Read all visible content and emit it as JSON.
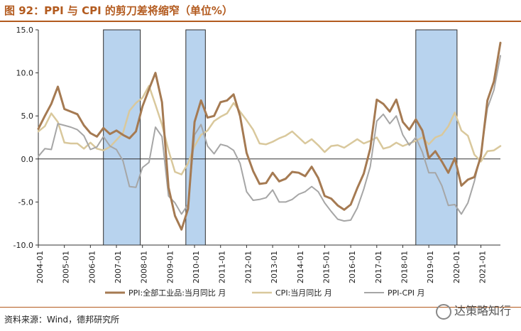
{
  "header": {
    "title": "图 92：PPI 与 CPI 的剪刀差将缩窄（单位%）"
  },
  "footer": {
    "source": "资料来源：Wind，德邦研究所",
    "brand": "达策略知行",
    "brand_icon": "wechat-icon"
  },
  "chart_data": {
    "type": "line",
    "title": "图 92：PPI 与 CPI 的剪刀差将缩窄（单位%）",
    "xlabel": "",
    "ylabel": "",
    "ylim": [
      -10,
      15
    ],
    "xlim": [
      "2004-01",
      "2021-10"
    ],
    "y_ticks": [
      "15.0",
      "10.0",
      "5.0",
      "0.0",
      "-5.0",
      "-10.0"
    ],
    "x_ticks": [
      "2004-01",
      "2005-01",
      "2006-01",
      "2007-01",
      "2008-01",
      "2009-01",
      "2010-01",
      "2011-01",
      "2012-01",
      "2013-01",
      "2014-01",
      "2015-01",
      "2016-01",
      "2017-01",
      "2018-01",
      "2019-01",
      "2020-01",
      "2021-01"
    ],
    "legend_position": "bottom",
    "grid": false,
    "shaded_periods": [
      {
        "start": "2006-07",
        "end": "2007-12"
      },
      {
        "start": "2009-09",
        "end": "2010-06"
      },
      {
        "start": "2018-07",
        "end": "2020-02"
      }
    ],
    "series": [
      {
        "name": "PPI:全部工业品:当月同比 月",
        "color": "#a57a52",
        "points": [
          [
            "2004-01",
            3.5
          ],
          [
            "2004-04",
            5.0
          ],
          [
            "2004-07",
            6.4
          ],
          [
            "2004-10",
            8.4
          ],
          [
            "2005-01",
            5.8
          ],
          [
            "2005-04",
            5.5
          ],
          [
            "2005-07",
            5.2
          ],
          [
            "2005-10",
            3.9
          ],
          [
            "2006-01",
            3.0
          ],
          [
            "2006-04",
            2.6
          ],
          [
            "2006-07",
            3.6
          ],
          [
            "2006-10",
            2.9
          ],
          [
            "2007-01",
            3.3
          ],
          [
            "2007-04",
            2.8
          ],
          [
            "2007-07",
            2.4
          ],
          [
            "2007-10",
            3.2
          ],
          [
            "2008-01",
            6.1
          ],
          [
            "2008-04",
            8.1
          ],
          [
            "2008-07",
            10.0
          ],
          [
            "2008-10",
            6.6
          ],
          [
            "2009-01",
            -3.3
          ],
          [
            "2009-04",
            -6.6
          ],
          [
            "2009-07",
            -8.2
          ],
          [
            "2009-10",
            -5.8
          ],
          [
            "2010-01",
            4.3
          ],
          [
            "2010-04",
            6.8
          ],
          [
            "2010-07",
            4.8
          ],
          [
            "2010-10",
            5.0
          ],
          [
            "2011-01",
            6.6
          ],
          [
            "2011-04",
            6.8
          ],
          [
            "2011-07",
            7.5
          ],
          [
            "2011-10",
            5.0
          ],
          [
            "2012-01",
            0.7
          ],
          [
            "2012-04",
            -1.4
          ],
          [
            "2012-07",
            -2.9
          ],
          [
            "2012-10",
            -2.8
          ],
          [
            "2013-01",
            -1.6
          ],
          [
            "2013-04",
            -2.6
          ],
          [
            "2013-07",
            -2.3
          ],
          [
            "2013-10",
            -1.5
          ],
          [
            "2014-01",
            -1.6
          ],
          [
            "2014-04",
            -2.0
          ],
          [
            "2014-07",
            -0.9
          ],
          [
            "2014-10",
            -2.2
          ],
          [
            "2015-01",
            -4.3
          ],
          [
            "2015-04",
            -4.6
          ],
          [
            "2015-07",
            -5.4
          ],
          [
            "2015-10",
            -5.9
          ],
          [
            "2016-01",
            -5.3
          ],
          [
            "2016-04",
            -3.4
          ],
          [
            "2016-07",
            -1.7
          ],
          [
            "2016-10",
            1.2
          ],
          [
            "2017-01",
            6.9
          ],
          [
            "2017-04",
            6.4
          ],
          [
            "2017-07",
            5.5
          ],
          [
            "2017-10",
            6.9
          ],
          [
            "2018-01",
            4.3
          ],
          [
            "2018-04",
            3.4
          ],
          [
            "2018-07",
            4.6
          ],
          [
            "2018-10",
            3.3
          ],
          [
            "2019-01",
            0.1
          ],
          [
            "2019-04",
            0.9
          ],
          [
            "2019-07",
            -0.3
          ],
          [
            "2019-10",
            -1.6
          ],
          [
            "2020-01",
            0.1
          ],
          [
            "2020-04",
            -3.1
          ],
          [
            "2020-07",
            -2.4
          ],
          [
            "2020-10",
            -2.1
          ],
          [
            "2021-01",
            0.3
          ],
          [
            "2021-04",
            6.8
          ],
          [
            "2021-07",
            9.0
          ],
          [
            "2021-10",
            13.5
          ]
        ]
      },
      {
        "name": "CPI:当月同比 月",
        "color": "#d9c89c",
        "points": [
          [
            "2004-01",
            3.2
          ],
          [
            "2004-04",
            3.8
          ],
          [
            "2004-07",
            5.3
          ],
          [
            "2004-10",
            4.3
          ],
          [
            "2005-01",
            1.9
          ],
          [
            "2005-04",
            1.8
          ],
          [
            "2005-07",
            1.8
          ],
          [
            "2005-10",
            1.2
          ],
          [
            "2006-01",
            1.9
          ],
          [
            "2006-04",
            1.2
          ],
          [
            "2006-07",
            1.0
          ],
          [
            "2006-10",
            1.4
          ],
          [
            "2007-01",
            2.2
          ],
          [
            "2007-04",
            3.0
          ],
          [
            "2007-07",
            5.6
          ],
          [
            "2007-10",
            6.5
          ],
          [
            "2008-01",
            7.1
          ],
          [
            "2008-04",
            8.5
          ],
          [
            "2008-07",
            6.3
          ],
          [
            "2008-10",
            4.0
          ],
          [
            "2009-01",
            1.0
          ],
          [
            "2009-04",
            -1.5
          ],
          [
            "2009-07",
            -1.8
          ],
          [
            "2009-10",
            -0.5
          ],
          [
            "2010-01",
            1.5
          ],
          [
            "2010-04",
            2.8
          ],
          [
            "2010-07",
            3.3
          ],
          [
            "2010-10",
            4.4
          ],
          [
            "2011-01",
            4.9
          ],
          [
            "2011-04",
            5.3
          ],
          [
            "2011-07",
            6.5
          ],
          [
            "2011-10",
            5.5
          ],
          [
            "2012-01",
            4.5
          ],
          [
            "2012-04",
            3.4
          ],
          [
            "2012-07",
            1.8
          ],
          [
            "2012-10",
            1.7
          ],
          [
            "2013-01",
            2.0
          ],
          [
            "2013-04",
            2.4
          ],
          [
            "2013-07",
            2.7
          ],
          [
            "2013-10",
            3.2
          ],
          [
            "2014-01",
            2.5
          ],
          [
            "2014-04",
            1.8
          ],
          [
            "2014-07",
            2.3
          ],
          [
            "2014-10",
            1.6
          ],
          [
            "2015-01",
            0.8
          ],
          [
            "2015-04",
            1.5
          ],
          [
            "2015-07",
            1.6
          ],
          [
            "2015-10",
            1.3
          ],
          [
            "2016-01",
            1.8
          ],
          [
            "2016-04",
            2.3
          ],
          [
            "2016-07",
            1.8
          ],
          [
            "2016-10",
            2.1
          ],
          [
            "2017-01",
            2.5
          ],
          [
            "2017-04",
            1.2
          ],
          [
            "2017-07",
            1.4
          ],
          [
            "2017-10",
            1.9
          ],
          [
            "2018-01",
            1.5
          ],
          [
            "2018-04",
            1.8
          ],
          [
            "2018-07",
            2.1
          ],
          [
            "2018-10",
            2.5
          ],
          [
            "2019-01",
            1.7
          ],
          [
            "2019-04",
            2.5
          ],
          [
            "2019-07",
            2.8
          ],
          [
            "2019-10",
            3.8
          ],
          [
            "2020-01",
            5.4
          ],
          [
            "2020-04",
            3.3
          ],
          [
            "2020-07",
            2.7
          ],
          [
            "2020-10",
            0.5
          ],
          [
            "2021-01",
            -0.3
          ],
          [
            "2021-04",
            0.9
          ],
          [
            "2021-07",
            1.0
          ],
          [
            "2021-10",
            1.5
          ]
        ]
      },
      {
        "name": "PPI-CPI 月",
        "color": "#a6a6a6",
        "points": [
          [
            "2004-01",
            0.3
          ],
          [
            "2004-04",
            1.2
          ],
          [
            "2004-07",
            1.1
          ],
          [
            "2004-10",
            4.1
          ],
          [
            "2005-01",
            3.9
          ],
          [
            "2005-04",
            3.7
          ],
          [
            "2005-07",
            3.4
          ],
          [
            "2005-10",
            2.7
          ],
          [
            "2006-01",
            1.1
          ],
          [
            "2006-04",
            1.4
          ],
          [
            "2006-07",
            2.6
          ],
          [
            "2006-10",
            1.5
          ],
          [
            "2007-01",
            1.1
          ],
          [
            "2007-04",
            -0.2
          ],
          [
            "2007-07",
            -3.2
          ],
          [
            "2007-10",
            -3.3
          ],
          [
            "2008-01",
            -1.0
          ],
          [
            "2008-04",
            -0.4
          ],
          [
            "2008-07",
            3.7
          ],
          [
            "2008-10",
            2.6
          ],
          [
            "2009-01",
            -4.3
          ],
          [
            "2009-04",
            -5.1
          ],
          [
            "2009-07",
            -6.4
          ],
          [
            "2009-10",
            -5.3
          ],
          [
            "2010-01",
            2.8
          ],
          [
            "2010-04",
            4.0
          ],
          [
            "2010-07",
            1.5
          ],
          [
            "2010-10",
            0.6
          ],
          [
            "2011-01",
            1.7
          ],
          [
            "2011-04",
            1.5
          ],
          [
            "2011-07",
            1.0
          ],
          [
            "2011-10",
            -0.5
          ],
          [
            "2012-01",
            -3.8
          ],
          [
            "2012-04",
            -4.8
          ],
          [
            "2012-07",
            -4.7
          ],
          [
            "2012-10",
            -4.5
          ],
          [
            "2013-01",
            -3.6
          ],
          [
            "2013-04",
            -5.0
          ],
          [
            "2013-07",
            -5.0
          ],
          [
            "2013-10",
            -4.7
          ],
          [
            "2014-01",
            -4.1
          ],
          [
            "2014-04",
            -3.8
          ],
          [
            "2014-07",
            -3.2
          ],
          [
            "2014-10",
            -3.8
          ],
          [
            "2015-01",
            -5.1
          ],
          [
            "2015-04",
            -6.1
          ],
          [
            "2015-07",
            -7.0
          ],
          [
            "2015-10",
            -7.2
          ],
          [
            "2016-01",
            -7.1
          ],
          [
            "2016-04",
            -5.7
          ],
          [
            "2016-07",
            -3.5
          ],
          [
            "2016-10",
            -0.9
          ],
          [
            "2017-01",
            4.4
          ],
          [
            "2017-04",
            5.2
          ],
          [
            "2017-07",
            4.1
          ],
          [
            "2017-10",
            5.0
          ],
          [
            "2018-01",
            2.8
          ],
          [
            "2018-04",
            1.6
          ],
          [
            "2018-07",
            2.5
          ],
          [
            "2018-10",
            0.8
          ],
          [
            "2019-01",
            -1.6
          ],
          [
            "2019-04",
            -1.6
          ],
          [
            "2019-07",
            -3.1
          ],
          [
            "2019-10",
            -5.4
          ],
          [
            "2020-01",
            -5.3
          ],
          [
            "2020-04",
            -6.4
          ],
          [
            "2020-07",
            -5.1
          ],
          [
            "2020-10",
            -2.6
          ],
          [
            "2021-01",
            0.6
          ],
          [
            "2021-04",
            5.9
          ],
          [
            "2021-07",
            8.0
          ],
          [
            "2021-10",
            12.0
          ]
        ]
      }
    ]
  }
}
